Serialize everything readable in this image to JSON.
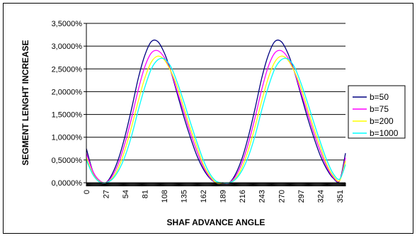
{
  "chart_data": {
    "type": "line",
    "title": "",
    "xlabel": "SHAF ADVANCE ANGLE",
    "ylabel": "SEGMENT LENGHT INCREASE",
    "ylim": [
      0,
      0.035
    ],
    "xlim": [
      0,
      359
    ],
    "ytick_labels": [
      "0,0000%",
      "0,5000%",
      "1,0000%",
      "1,5000%",
      "2,0000%",
      "2,5000%",
      "3,0000%",
      "3,5000%"
    ],
    "ytick_values": [
      0,
      0.005,
      0.01,
      0.015,
      0.02,
      0.025,
      0.03,
      0.035
    ],
    "xtick_labels": [
      "0",
      "27",
      "54",
      "81",
      "108",
      "135",
      "162",
      "189",
      "216",
      "243",
      "270",
      "297",
      "324",
      "351"
    ],
    "xtick_values": [
      0,
      27,
      54,
      81,
      108,
      135,
      162,
      189,
      216,
      243,
      270,
      297,
      324,
      351
    ],
    "grid": "horizontal",
    "legend_position": "right",
    "x": [
      0,
      9,
      18,
      27,
      36,
      45,
      54,
      63,
      72,
      81,
      90,
      99,
      108,
      117,
      126,
      135,
      144,
      153,
      162,
      171,
      180,
      189,
      198,
      207,
      216,
      225,
      234,
      243,
      252,
      261,
      270,
      279,
      288,
      297,
      306,
      315,
      324,
      333,
      342,
      351,
      359
    ],
    "series": [
      {
        "name": "b=50",
        "color": "#000080",
        "values": [
          0.0075,
          0.0025,
          0.0005,
          0.0,
          0.002,
          0.0055,
          0.0105,
          0.0165,
          0.023,
          0.028,
          0.031,
          0.031,
          0.0285,
          0.0245,
          0.0195,
          0.0145,
          0.01,
          0.006,
          0.003,
          0.001,
          0.0,
          0.0,
          0.0,
          0.002,
          0.0055,
          0.0105,
          0.0165,
          0.023,
          0.028,
          0.031,
          0.031,
          0.0285,
          0.0245,
          0.0195,
          0.0145,
          0.01,
          0.006,
          0.003,
          0.001,
          0.0005,
          0.0065
        ]
      },
      {
        "name": "b=75",
        "color": "#ff00ff",
        "values": [
          0.0065,
          0.0025,
          0.0005,
          0.0,
          0.0015,
          0.0045,
          0.009,
          0.0145,
          0.0205,
          0.0255,
          0.0285,
          0.029,
          0.0275,
          0.0245,
          0.02,
          0.0155,
          0.011,
          0.007,
          0.0035,
          0.0012,
          0.0,
          0.0,
          0.0,
          0.0015,
          0.0045,
          0.009,
          0.0145,
          0.0205,
          0.0255,
          0.0285,
          0.029,
          0.0275,
          0.0245,
          0.02,
          0.0155,
          0.011,
          0.007,
          0.0035,
          0.0012,
          0.0005,
          0.0055
        ]
      },
      {
        "name": "b=200",
        "color": "#ffff00",
        "values": [
          0.0055,
          0.002,
          0.0003,
          0.0,
          0.001,
          0.0035,
          0.0075,
          0.0125,
          0.018,
          0.023,
          0.0265,
          0.0278,
          0.027,
          0.0245,
          0.021,
          0.0165,
          0.012,
          0.008,
          0.004,
          0.0015,
          0.0,
          0.0,
          0.0,
          0.001,
          0.0035,
          0.0075,
          0.0125,
          0.018,
          0.023,
          0.0265,
          0.0278,
          0.027,
          0.0245,
          0.021,
          0.0165,
          0.012,
          0.008,
          0.004,
          0.0015,
          0.0005,
          0.0048
        ]
      },
      {
        "name": "b=1000",
        "color": "#00ffff",
        "values": [
          0.005,
          0.0018,
          0.0002,
          0.0,
          0.0008,
          0.0028,
          0.006,
          0.0105,
          0.016,
          0.021,
          0.025,
          0.027,
          0.0272,
          0.0255,
          0.022,
          0.0178,
          0.0133,
          0.009,
          0.005,
          0.002,
          0.0003,
          0.0,
          0.0,
          0.0008,
          0.0028,
          0.006,
          0.0105,
          0.016,
          0.021,
          0.025,
          0.027,
          0.0272,
          0.0255,
          0.022,
          0.0178,
          0.0133,
          0.009,
          0.005,
          0.002,
          0.0008,
          0.004
        ]
      }
    ]
  }
}
